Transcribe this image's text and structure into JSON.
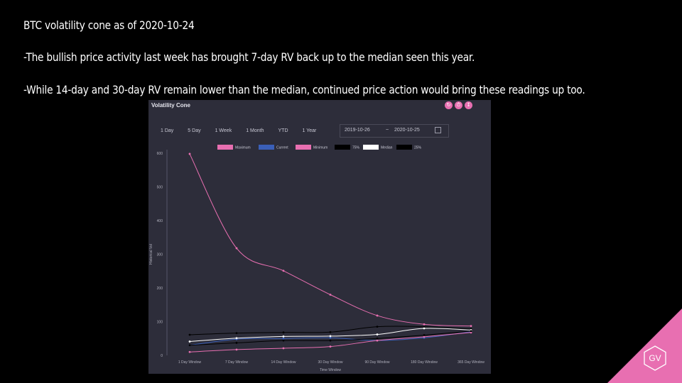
{
  "slide": {
    "title": "BTC volatility  cone as of 2020-10-24",
    "bullets": [
      "-The bullish price activity last week has brought 7-day RV back up to the median seen this year.",
      "-While 14-day and 30-day RV remain lower than the median, continued price action would bring these readings up too."
    ],
    "logo_text": "GV",
    "accent_color": "#e86fb1"
  },
  "panel": {
    "title": "Volatility Cone",
    "range_buttons": [
      "1 Day",
      "5 Day",
      "1 Week",
      "1 Month",
      "YTD",
      "1 Year"
    ],
    "date_start": "2019-10-26",
    "date_sep": "~",
    "date_end": "2020-10-25",
    "icons": [
      "refresh-icon",
      "reset-icon",
      "download-icon"
    ]
  },
  "chart_data": {
    "type": "line",
    "categories": [
      "1 Day Window",
      "7 Day Window",
      "14 Day Window",
      "30 Day Window",
      "90 Day Window",
      "180 Day Window",
      "365 Day Window"
    ],
    "xlabel": "Time Window",
    "ylabel": "Historical Vol",
    "ylim": [
      0,
      600
    ],
    "yticks": [
      0,
      100,
      200,
      300,
      400,
      500,
      600
    ],
    "grid": false,
    "legend_position": "top",
    "series": [
      {
        "name": "Maximum",
        "color": "#e86fb1",
        "values": [
          598,
          318,
          251,
          180,
          118,
          92,
          87
        ]
      },
      {
        "name": "Current",
        "color": "#3a5fb8",
        "values": [
          30,
          48,
          50,
          52,
          44,
          52,
          70
        ]
      },
      {
        "name": "Minimum",
        "color": "#e86fb1",
        "values": [
          10,
          17,
          21,
          26,
          44,
          55,
          68
        ]
      },
      {
        "name": "75%",
        "color": "#000000",
        "values": [
          61,
          66,
          68,
          69,
          85,
          85,
          78
        ]
      },
      {
        "name": "Median",
        "color": "#ffffff",
        "values": [
          41,
          51,
          56,
          57,
          62,
          80,
          75
        ]
      },
      {
        "name": "25%",
        "color": "#000000",
        "values": [
          30,
          37,
          44,
          44,
          50,
          60,
          72
        ]
      }
    ]
  }
}
